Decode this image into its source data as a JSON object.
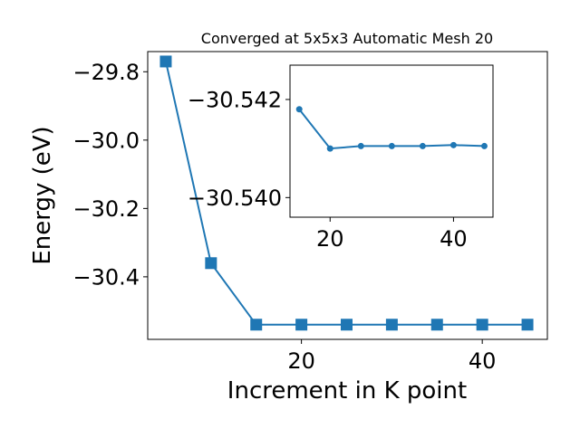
{
  "chart_data": [
    {
      "type": "line",
      "title": "Converged at 5x5x3 Automatic Mesh 20",
      "xlabel": "Increment in K point",
      "ylabel": "Energy (eV)",
      "x": [
        5,
        10,
        15,
        20,
        25,
        30,
        35,
        40,
        45
      ],
      "series": [
        {
          "values": [
            -29.77,
            -30.36,
            -30.54,
            -30.54,
            -30.54,
            -30.54,
            -30.54,
            -30.54,
            -30.54
          ],
          "color": "#1f77b4",
          "marker": "square"
        }
      ],
      "xlim": [
        3,
        47.2
      ],
      "ylim": [
        -30.583,
        -29.741
      ],
      "xticks": [
        20,
        40
      ],
      "xtick_labels": [
        "20",
        "40"
      ],
      "yticks": [
        -29.8,
        -30.0,
        -30.2,
        -30.4
      ],
      "ytick_labels": [
        "−29.8",
        "−30.0",
        "−30.2",
        "−30.4"
      ],
      "grid": false
    },
    {
      "type": "line",
      "title": "",
      "xlabel": "",
      "ylabel": "",
      "x": [
        15,
        20,
        25,
        30,
        35,
        40,
        45
      ],
      "series": [
        {
          "values": [
            -30.5418,
            -30.541,
            -30.54105,
            -30.54105,
            -30.54105,
            -30.54107,
            -30.54105
          ],
          "color": "#1f77b4",
          "marker": "circle"
        }
      ],
      "xlim": [
        13.5,
        46.4
      ],
      "ylim": [
        -30.5396,
        -30.5427
      ],
      "xticks": [
        20,
        40
      ],
      "xtick_labels": [
        "20",
        "40"
      ],
      "yticks": [
        -30.542,
        -30.54
      ],
      "ytick_labels": [
        "−30.542",
        "−30.540"
      ],
      "grid": false
    }
  ]
}
